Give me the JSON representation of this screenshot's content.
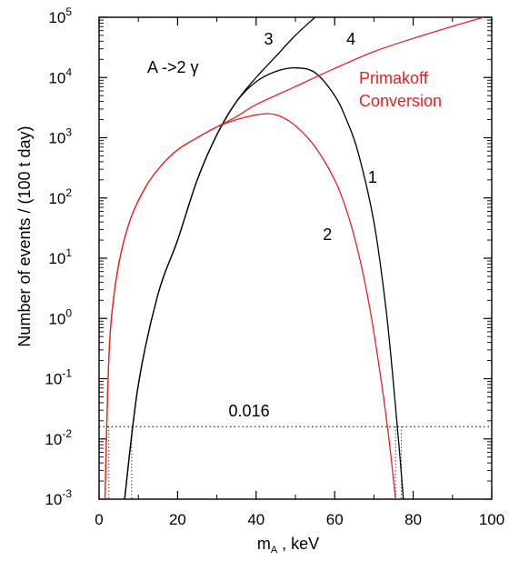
{
  "chart_data": {
    "type": "line",
    "xlabel_main": "m",
    "xlabel_sub": "A",
    "xlabel_rest": " , keV",
    "ylabel": "Number of events / (100 t day)",
    "xlim": [
      0,
      100
    ],
    "ylim_log10": [
      -3,
      5
    ],
    "y_scale": "log",
    "x_ticks": [
      {
        "value": 0,
        "label": "0"
      },
      {
        "value": 20,
        "label": "20"
      },
      {
        "value": 40,
        "label": "40"
      },
      {
        "value": 60,
        "label": "60"
      },
      {
        "value": 80,
        "label": "80"
      },
      {
        "value": 100,
        "label": "100"
      }
    ],
    "y_ticks": [
      {
        "exp": -3,
        "base": "10",
        "sup": "-3"
      },
      {
        "exp": -2,
        "base": "10",
        "sup": "-2"
      },
      {
        "exp": -1,
        "base": "10",
        "sup": "-1"
      },
      {
        "exp": 0,
        "base": "10",
        "sup": "0"
      },
      {
        "exp": 1,
        "base": "10",
        "sup": "1"
      },
      {
        "exp": 2,
        "base": "10",
        "sup": "2"
      },
      {
        "exp": 3,
        "base": "10",
        "sup": "3"
      },
      {
        "exp": 4,
        "base": "10",
        "sup": "4"
      },
      {
        "exp": 5,
        "base": "10",
        "sup": "5"
      }
    ],
    "threshold": {
      "value": 0.016,
      "label": "0.016"
    },
    "annotations": {
      "decay": "A ->2  γ",
      "primakoff_line1": "Primakoff",
      "primakoff_line2": "Conversion"
    },
    "series": [
      {
        "label": "1",
        "color": "#000000",
        "points": [
          [
            6.5,
            -3
          ],
          [
            10,
            -1.1
          ],
          [
            15,
            0.4
          ],
          [
            20,
            1.3
          ],
          [
            25,
            2.3
          ],
          [
            30,
            3.05
          ],
          [
            35,
            3.6
          ],
          [
            40,
            3.93
          ],
          [
            45,
            4.1
          ],
          [
            50,
            4.16
          ],
          [
            55,
            4.08
          ],
          [
            60,
            3.7
          ],
          [
            63,
            3.3
          ],
          [
            66,
            2.75
          ],
          [
            70,
            1.6
          ],
          [
            73,
            0.2
          ],
          [
            75,
            -1.1
          ],
          [
            76.5,
            -2.2
          ],
          [
            77.5,
            -3
          ]
        ]
      },
      {
        "label": "2",
        "color": "#e8221f",
        "points": [
          [
            1.5,
            -3
          ],
          [
            2.2,
            -1.2
          ],
          [
            3,
            -0.1
          ],
          [
            5,
            0.9
          ],
          [
            8,
            1.65
          ],
          [
            12,
            2.2
          ],
          [
            16,
            2.55
          ],
          [
            20,
            2.8
          ],
          [
            25,
            3
          ],
          [
            30,
            3.18
          ],
          [
            35,
            3.3
          ],
          [
            40,
            3.38
          ],
          [
            43,
            3.4
          ],
          [
            46,
            3.36
          ],
          [
            50,
            3.2
          ],
          [
            55,
            2.85
          ],
          [
            60,
            2.3
          ],
          [
            63,
            1.8
          ],
          [
            66,
            1.1
          ],
          [
            69,
            0.15
          ],
          [
            72,
            -1.1
          ],
          [
            74,
            -2.1
          ],
          [
            75.5,
            -3
          ]
        ]
      },
      {
        "label": "3",
        "color": "#000000",
        "points": [
          [
            6.5,
            -3
          ],
          [
            10,
            -1.1
          ],
          [
            15,
            0.4
          ],
          [
            20,
            1.3
          ],
          [
            25,
            2.3
          ],
          [
            30,
            3.05
          ],
          [
            35,
            3.6
          ],
          [
            40,
            4
          ],
          [
            45,
            4.35
          ],
          [
            50,
            4.7
          ],
          [
            55,
            5
          ]
        ]
      },
      {
        "label": "4",
        "color": "#e8221f",
        "points": [
          [
            1.5,
            -3
          ],
          [
            2.2,
            -1.2
          ],
          [
            3,
            -0.1
          ],
          [
            5,
            0.9
          ],
          [
            8,
            1.65
          ],
          [
            12,
            2.2
          ],
          [
            16,
            2.55
          ],
          [
            20,
            2.8
          ],
          [
            25,
            3
          ],
          [
            30,
            3.18
          ],
          [
            35,
            3.35
          ],
          [
            40,
            3.55
          ],
          [
            50,
            3.85
          ],
          [
            60,
            4.15
          ],
          [
            70,
            4.43
          ],
          [
            80,
            4.65
          ],
          [
            90,
            4.85
          ],
          [
            98,
            5
          ]
        ]
      }
    ]
  }
}
